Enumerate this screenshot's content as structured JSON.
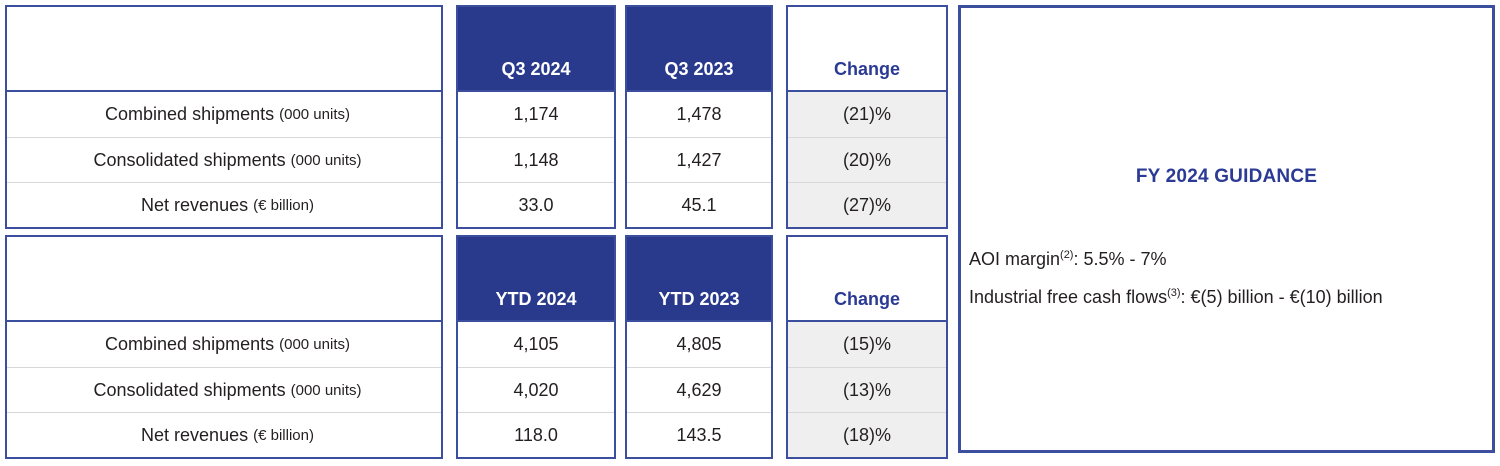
{
  "colors": {
    "navy_fill": "#293a8c",
    "navy_text": "#2b3a94",
    "border": "#3b4f9e",
    "change_cell_bg": "#efeff0",
    "row_separator": "#d8d8d8",
    "body_text": "#231f20"
  },
  "tables": [
    {
      "id": "quarter",
      "columns": [
        "Q3 2024",
        "Q3 2023",
        "Change"
      ],
      "rows": [
        {
          "label": "Combined shipments",
          "label_suffix": "(000 units)",
          "v1": "1,174",
          "v2": "1,478",
          "change": "(21)%"
        },
        {
          "label": "Consolidated shipments",
          "label_suffix": "(000 units)",
          "v1": "1,148",
          "v2": "1,427",
          "change": "(20)%"
        },
        {
          "label": "Net revenues",
          "label_suffix": "(€ billion)",
          "v1": "33.0",
          "v2": "45.1",
          "change": "(27)%"
        }
      ]
    },
    {
      "id": "ytd",
      "columns": [
        "YTD 2024",
        "YTD 2023",
        "Change"
      ],
      "rows": [
        {
          "label": "Combined shipments",
          "label_suffix": "(000 units)",
          "v1": "4,105",
          "v2": "4,805",
          "change": "(15)%"
        },
        {
          "label": "Consolidated shipments",
          "label_suffix": "(000 units)",
          "v1": "4,020",
          "v2": "4,629",
          "change": "(13)%"
        },
        {
          "label": "Net revenues",
          "label_suffix": "(€ billion)",
          "v1": "118.0",
          "v2": "143.5",
          "change": "(18)%"
        }
      ]
    }
  ],
  "guidance": {
    "title": "FY 2024 GUIDANCE",
    "lines": [
      {
        "text": "AOI margin",
        "sup": "(2)",
        "rest": ": 5.5% - 7%"
      },
      {
        "text": "Industrial free cash flows",
        "sup": "(3)",
        "rest": ": €(5) billion - €(10) billion"
      }
    ]
  }
}
